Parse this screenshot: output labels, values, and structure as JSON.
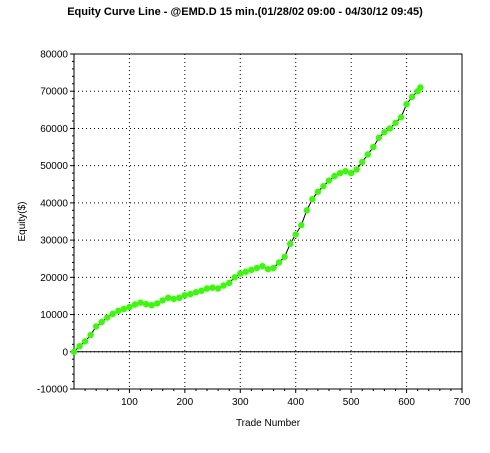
{
  "chart_data": {
    "type": "line",
    "title": "Equity Curve Line - @EMD.D 15 min.(01/28/02 09:00 - 04/30/12 09:45)",
    "xlabel": "Trade Number",
    "ylabel": "Equity($)",
    "xlim": [
      0,
      700
    ],
    "ylim": [
      -10000,
      80000
    ],
    "x_ticks": [
      "100",
      "200",
      "300",
      "400",
      "500",
      "600",
      "700"
    ],
    "y_ticks": [
      "-10000",
      "0",
      "10000",
      "20000",
      "30000",
      "40000",
      "50000",
      "60000",
      "70000",
      "80000"
    ],
    "grid": true,
    "line_color": "#000000",
    "marker_color": "#33ff00",
    "series": [
      {
        "x": [
          0,
          10,
          20,
          30,
          40,
          50,
          60,
          70,
          80,
          90,
          100,
          110,
          120,
          130,
          140,
          150,
          160,
          170,
          180,
          190,
          200,
          210,
          220,
          230,
          240,
          250,
          260,
          270,
          280,
          290,
          300,
          310,
          320,
          330,
          340,
          350,
          360,
          370,
          380,
          390,
          400,
          410,
          420,
          430,
          440,
          450,
          460,
          470,
          480,
          490,
          500,
          510,
          520,
          530,
          540,
          550,
          560,
          570,
          580,
          590,
          600,
          610,
          620,
          625
        ],
        "y": [
          0,
          1500,
          2800,
          4500,
          6800,
          8000,
          9200,
          10200,
          11000,
          11500,
          12000,
          12700,
          13200,
          12800,
          12500,
          13000,
          13800,
          14500,
          14200,
          14500,
          15200,
          15500,
          16000,
          16400,
          17000,
          17200,
          17000,
          17800,
          18500,
          20000,
          21000,
          21500,
          22000,
          22500,
          23000,
          22200,
          22500,
          24000,
          25500,
          29000,
          31500,
          34000,
          38000,
          41000,
          43000,
          44500,
          46000,
          47200,
          48000,
          48500,
          48000,
          49000,
          51000,
          53000,
          55000,
          57500,
          59000,
          60000,
          61500,
          63000,
          66500,
          68500,
          70000,
          71000
        ]
      }
    ]
  }
}
